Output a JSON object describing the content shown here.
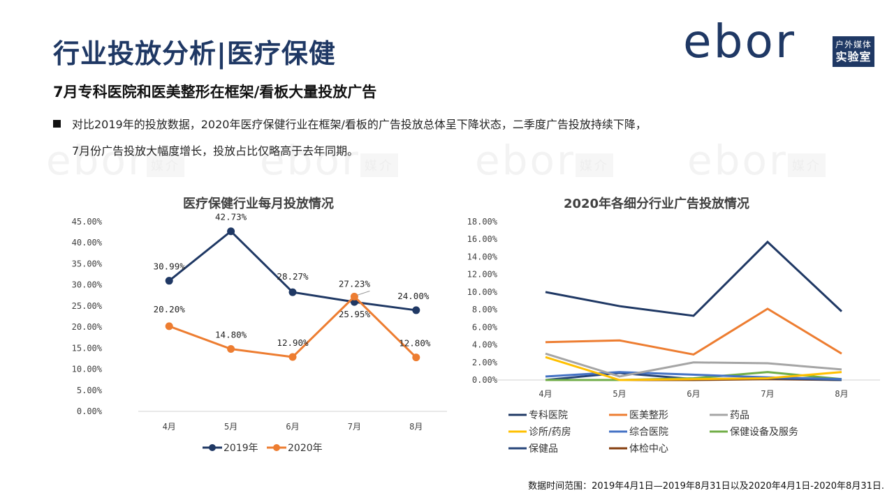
{
  "header": {
    "title": "行业投放分析|医疗保健",
    "logo": {
      "word": "ebor",
      "box_line1": "户外媒体",
      "box_line2": "实验室"
    },
    "subtitle": "7月专科医院和医美整形在框架/看板大量投放广告"
  },
  "bullets": {
    "line1": "对比2019年的投放数据，2020年医疗保健行业在框架/看板的广告投放总体呈下降状态，二季度广告投放持续下降，",
    "line2": "7月份广告投放大幅度增长，投放占比仅略高于去年同期。"
  },
  "watermark": {
    "word": "ebor",
    "box": "媒介"
  },
  "footnote": "数据时间范围：2019年4月1日—2019年8月31日以及2020年4月1日-2020年8月31日.",
  "colors": {
    "navy": "#1f3864",
    "orange": "#ed7d31",
    "gray": "#a5a5a5",
    "yellow": "#ffc000",
    "blue": "#4472c4",
    "green": "#70ad47",
    "darkblue": "#264478",
    "brown": "#843c0c"
  },
  "chart_data": [
    {
      "type": "line",
      "title": "医疗保健行业每月投放情况",
      "categories": [
        "4月",
        "5月",
        "6月",
        "7月",
        "8月"
      ],
      "xlabel": "",
      "ylabel": "",
      "ylim": [
        0,
        45
      ],
      "yticks": [
        "0.00%",
        "5.00%",
        "10.00%",
        "15.00%",
        "20.00%",
        "25.00%",
        "30.00%",
        "35.00%",
        "40.00%",
        "45.00%"
      ],
      "grid": false,
      "legend": "bottom",
      "series": [
        {
          "name": "2019年",
          "color": "#1f3864",
          "values": [
            30.99,
            42.73,
            28.27,
            25.95,
            24.0
          ],
          "labels": [
            "30.99%",
            "42.73%",
            "28.27%",
            "25.95%",
            "24.00%"
          ]
        },
        {
          "name": "2020年",
          "color": "#ed7d31",
          "values": [
            20.2,
            14.8,
            12.9,
            27.23,
            12.8
          ],
          "labels": [
            "20.20%",
            "14.80%",
            "12.90%",
            "27.23%",
            "12.80%"
          ]
        }
      ]
    },
    {
      "type": "line",
      "title": "2020年各细分行业广告投放情况",
      "categories": [
        "4月",
        "5月",
        "6月",
        "7月",
        "8月"
      ],
      "xlabel": "",
      "ylabel": "",
      "ylim": [
        0,
        18
      ],
      "yticks": [
        "0.00%",
        "2.00%",
        "4.00%",
        "6.00%",
        "8.00%",
        "10.00%",
        "12.00%",
        "14.00%",
        "16.00%",
        "18.00%"
      ],
      "grid": false,
      "legend": "bottom",
      "series": [
        {
          "name": "专科医院",
          "color": "#1f3864",
          "values": [
            10.0,
            8.4,
            7.3,
            15.7,
            7.8
          ]
        },
        {
          "name": "医美整形",
          "color": "#ed7d31",
          "values": [
            4.3,
            4.5,
            2.9,
            8.1,
            3.0
          ]
        },
        {
          "name": "药品",
          "color": "#a5a5a5",
          "values": [
            3.0,
            0.4,
            2.0,
            1.9,
            1.2
          ]
        },
        {
          "name": "诊所/药房",
          "color": "#ffc000",
          "values": [
            2.6,
            0.0,
            0.1,
            0.2,
            0.9
          ]
        },
        {
          "name": "综合医院",
          "color": "#4472c4",
          "values": [
            0.4,
            0.9,
            0.6,
            0.3,
            0.1
          ]
        },
        {
          "name": "保健设备及服务",
          "color": "#70ad47",
          "values": [
            0.0,
            0.0,
            0.2,
            0.9,
            0.1
          ]
        },
        {
          "name": "保健品",
          "color": "#264478",
          "values": [
            0.0,
            0.8,
            0.1,
            0.2,
            0.0
          ]
        },
        {
          "name": "体检中心",
          "color": "#843c0c",
          "values": [
            0.0,
            0.0,
            0.0,
            0.1,
            0.0
          ]
        }
      ]
    }
  ]
}
